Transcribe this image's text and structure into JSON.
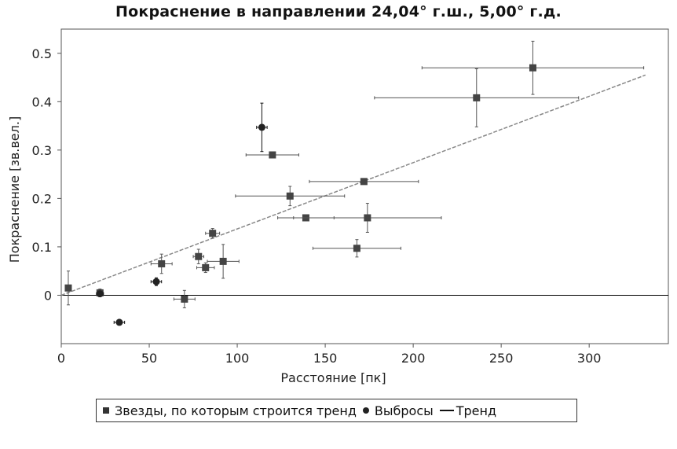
{
  "chart_data": {
    "type": "scatter",
    "title": "Покраснение в направлении 24,04° г.ш., 5,00° г.д.",
    "xlabel": "Расстояние [пк]",
    "ylabel": "Покраснение [зв.вел.]",
    "xlim": [
      0,
      345
    ],
    "ylim": [
      -0.1,
      0.55
    ],
    "xticks": [
      "0",
      "50",
      "100",
      "150",
      "200",
      "250",
      "300"
    ],
    "yticks": [
      "0",
      "0.1",
      "0.2",
      "0.3",
      "0.4",
      "0.5"
    ],
    "grid": false,
    "legend_position": "bottom",
    "series": [
      {
        "name": "Звезды, по которым строится тренд",
        "marker": "square",
        "color": "#444444",
        "points": [
          {
            "x": 4,
            "y": 0.015,
            "xerr": 0,
            "yerr": 0.035
          },
          {
            "x": 22,
            "y": 0.005,
            "xerr": 0,
            "yerr": 0.008
          },
          {
            "x": 57,
            "y": 0.065,
            "xerr": 6,
            "yerr": 0.02
          },
          {
            "x": 70,
            "y": -0.008,
            "xerr": 6,
            "yerr": 0.018
          },
          {
            "x": 78,
            "y": 0.08,
            "xerr": 3,
            "yerr": 0.015
          },
          {
            "x": 82,
            "y": 0.057,
            "xerr": 5,
            "yerr": 0.01
          },
          {
            "x": 86,
            "y": 0.128,
            "xerr": 4,
            "yerr": 0.01
          },
          {
            "x": 92,
            "y": 0.07,
            "xerr": 9,
            "yerr": 0.035
          },
          {
            "x": 120,
            "y": 0.29,
            "xerr": 15,
            "yerr": 0.005
          },
          {
            "x": 130,
            "y": 0.205,
            "xerr": 31,
            "yerr": 0.02
          },
          {
            "x": 139,
            "y": 0.16,
            "xerr": 16,
            "yerr": 0.005
          },
          {
            "x": 168,
            "y": 0.097,
            "xerr": 25,
            "yerr": 0.018
          },
          {
            "x": 172,
            "y": 0.235,
            "xerr": 31,
            "yerr": 0.005
          },
          {
            "x": 174,
            "y": 0.16,
            "xerr": 42,
            "yerr": 0.03
          },
          {
            "x": 236,
            "y": 0.408,
            "xerr": 58,
            "yerr": 0.06
          },
          {
            "x": 268,
            "y": 0.47,
            "xerr": 63,
            "yerr": 0.055
          }
        ]
      },
      {
        "name": "Выбросы",
        "marker": "circle",
        "color": "#222222",
        "points": [
          {
            "x": 22,
            "y": 0.003,
            "xerr": 2,
            "yerr": 0.005
          },
          {
            "x": 33,
            "y": -0.056,
            "xerr": 3,
            "yerr": 0.003
          },
          {
            "x": 54,
            "y": 0.028,
            "xerr": 3,
            "yerr": 0.008
          },
          {
            "x": 114,
            "y": 0.347,
            "xerr": 3,
            "yerr": 0.05
          }
        ]
      },
      {
        "name": "Тренд",
        "marker": "line",
        "color": "#888888",
        "line": [
          [
            0,
            0.0
          ],
          [
            332,
            0.455
          ]
        ]
      }
    ]
  }
}
